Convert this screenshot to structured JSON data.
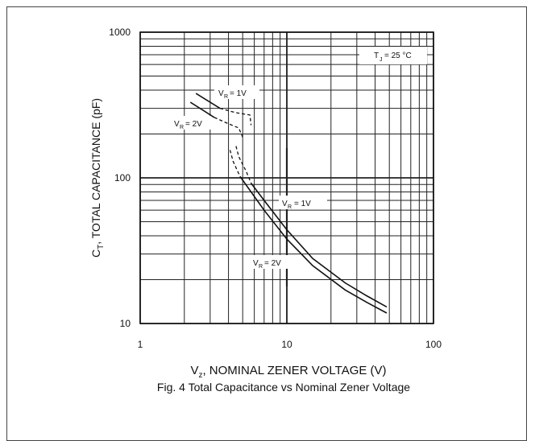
{
  "chart_data": {
    "type": "line",
    "title": "Fig. 4  Total Capacitance vs Nominal Zener Voltage",
    "xlabel": "V_Z, NOMINAL ZENER VOLTAGE (V)",
    "ylabel": "C_T, TOTAL CAPACITANCE (pF)",
    "xscale": "log",
    "yscale": "log",
    "xlim": [
      1,
      100
    ],
    "ylim": [
      10,
      1000
    ],
    "xticks": [
      "1",
      "10",
      "100"
    ],
    "yticks": [
      "10",
      "100",
      "1000"
    ],
    "grid": true,
    "annotations": [
      "T_J = 25 °C",
      "V_R = 1V",
      "V_R = 2V"
    ],
    "series": [
      {
        "name": "V_R = 1V",
        "style": "solid",
        "segments": [
          [
            [
              2.4,
              380
            ],
            [
              3.5,
              300
            ]
          ],
          [
            [
              5.7,
              92
            ],
            [
              7,
              70
            ],
            [
              10,
              44
            ],
            [
              15,
              28
            ],
            [
              25,
              19
            ],
            [
              35,
              15.5
            ],
            [
              48,
              13
            ]
          ]
        ]
      },
      {
        "name": "V_R = 1V",
        "style": "dashed",
        "segments": [
          [
            [
              3.5,
              300
            ],
            [
              4.5,
              280
            ],
            [
              5.6,
              270
            ],
            [
              5.7,
              230
            ]
          ],
          [
            [
              4.5,
              165
            ],
            [
              4.7,
              140
            ],
            [
              5.3,
              110
            ],
            [
              5.7,
              92
            ]
          ]
        ]
      },
      {
        "name": "V_R = 2V",
        "style": "solid",
        "segments": [
          [
            [
              2.2,
              330
            ],
            [
              3.2,
              260
            ]
          ],
          [
            [
              4.8,
              102
            ],
            [
              7,
              60
            ],
            [
              10,
              38
            ],
            [
              15,
              25
            ],
            [
              25,
              17
            ],
            [
              35,
              14
            ],
            [
              48,
              11.8
            ]
          ]
        ]
      },
      {
        "name": "V_R = 2V",
        "style": "dashed",
        "segments": [
          [
            [
              3.2,
              260
            ],
            [
              4,
              235
            ],
            [
              4.7,
              220
            ],
            [
              5,
              190
            ]
          ],
          [
            [
              4.1,
              155
            ],
            [
              4.3,
              130
            ],
            [
              4.6,
              112
            ],
            [
              4.8,
              102
            ]
          ]
        ]
      }
    ]
  },
  "labels": {
    "tj": "= 25 °C",
    "tj_prefix": "T",
    "tj_sub": "J",
    "vr1_upper": "= 1V",
    "vr2_upper": "= 2V",
    "vr1_lower": "= 1V",
    "vr2_lower": "= 2V",
    "v": "V",
    "r_sub": "R"
  },
  "axis_text": {
    "x_prefix": "V",
    "x_sub": "z",
    "x_rest": ", NOMINAL ZENER VOLTAGE (V)",
    "y_prefix": "C",
    "y_sub": "T",
    "y_rest": ", TOTAL CAPACITANCE (pF)"
  },
  "colors": {
    "ink": "#111111",
    "grid": "#222222"
  }
}
